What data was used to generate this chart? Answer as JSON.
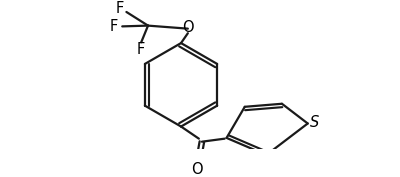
{
  "background_color": "#ffffff",
  "line_color": "#1a1a1a",
  "line_width": 1.6,
  "text_color": "#000000",
  "font_size": 10.5,
  "figsize": [
    4.0,
    1.77
  ],
  "dpi": 100,
  "labels": {
    "F1": "F",
    "F2": "F",
    "F3": "F",
    "O": "O",
    "O_carbonyl": "O",
    "S": "S"
  }
}
